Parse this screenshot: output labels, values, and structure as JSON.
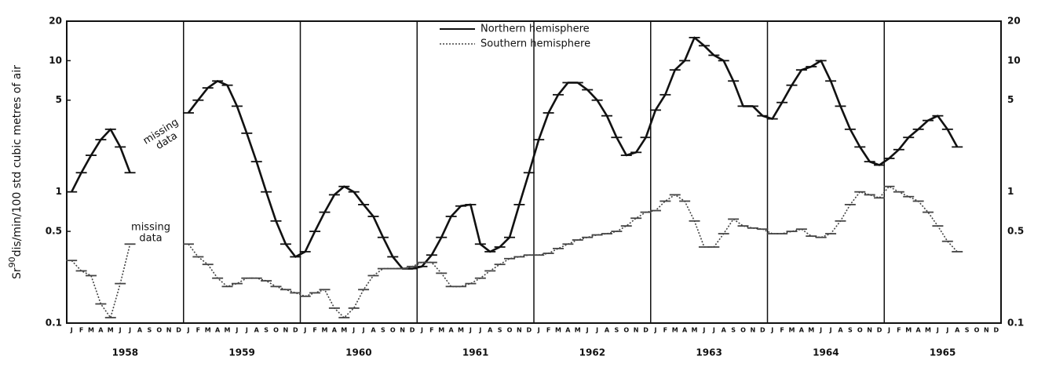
{
  "chart_data": {
    "type": "line",
    "ylabel": [
      "Sr",
      "90",
      "dis/min/100 std cubic metres of air"
    ],
    "log_scale": true,
    "ylim": [
      0.1,
      20
    ],
    "yticks": [
      0.1,
      0.5,
      1,
      5,
      10,
      20
    ],
    "years": [
      "1958",
      "1959",
      "1960",
      "1961",
      "1962",
      "1963",
      "1964",
      "1965"
    ],
    "categories": [
      "J",
      "F",
      "M",
      "A",
      "M",
      "J",
      "J",
      "A",
      "S",
      "O",
      "N",
      "D",
      "J",
      "F",
      "M",
      "A",
      "M",
      "J",
      "J",
      "A",
      "S",
      "O",
      "N",
      "D",
      "J",
      "F",
      "M",
      "A",
      "M",
      "J",
      "J",
      "A",
      "S",
      "O",
      "N",
      "D",
      "J",
      "F",
      "M",
      "A",
      "M",
      "J",
      "J",
      "A",
      "S",
      "O",
      "N",
      "D",
      "J",
      "F",
      "M",
      "A",
      "M",
      "J",
      "J",
      "A",
      "S",
      "O",
      "N",
      "D",
      "J",
      "F",
      "M",
      "A",
      "M",
      "J",
      "J",
      "A",
      "S",
      "O",
      "N",
      "D",
      "J",
      "F",
      "M",
      "A",
      "M",
      "J",
      "J",
      "A",
      "S",
      "O",
      "N",
      "D",
      "J",
      "F",
      "M",
      "A",
      "M",
      "J",
      "J",
      "A",
      "S",
      "O",
      "N",
      "D"
    ],
    "series": [
      {
        "name": "Northern hemisphere",
        "color": "#111111",
        "style": "solid",
        "values": [
          1.0,
          1.4,
          1.9,
          2.5,
          3.0,
          2.2,
          1.4,
          null,
          null,
          null,
          null,
          null,
          4.0,
          5.0,
          6.2,
          7.0,
          6.5,
          4.5,
          2.8,
          1.7,
          1.0,
          0.6,
          0.4,
          0.32,
          0.35,
          0.5,
          0.7,
          0.95,
          1.1,
          1.0,
          0.8,
          0.65,
          0.45,
          0.32,
          0.26,
          0.26,
          0.27,
          0.33,
          0.45,
          0.65,
          0.78,
          0.8,
          0.4,
          0.35,
          0.38,
          0.45,
          0.8,
          1.4,
          2.5,
          4.0,
          5.5,
          6.8,
          6.8,
          6.0,
          5.0,
          3.8,
          2.6,
          1.9,
          2.0,
          2.6,
          4.2,
          5.5,
          8.5,
          10,
          15,
          13,
          11,
          10,
          7,
          4.5,
          4.5,
          3.8,
          3.6,
          4.8,
          6.5,
          8.5,
          9,
          10,
          7,
          4.5,
          3.0,
          2.2,
          1.7,
          1.6,
          1.8,
          2.1,
          2.6,
          3.0,
          3.5,
          3.8,
          3.0,
          2.2,
          null,
          null,
          null,
          null
        ]
      },
      {
        "name": "Southern hemisphere",
        "color": "#444444",
        "style": "dotted",
        "values": [
          0.3,
          0.25,
          0.23,
          0.14,
          0.11,
          0.2,
          0.4,
          null,
          null,
          null,
          null,
          null,
          0.4,
          0.32,
          0.28,
          0.22,
          0.19,
          0.2,
          0.22,
          0.22,
          0.21,
          0.19,
          0.18,
          0.17,
          0.16,
          0.17,
          0.18,
          0.13,
          0.11,
          0.13,
          0.18,
          0.23,
          0.26,
          0.26,
          0.26,
          0.27,
          0.29,
          0.29,
          0.24,
          0.19,
          0.19,
          0.2,
          0.22,
          0.25,
          0.28,
          0.31,
          0.32,
          0.33,
          0.33,
          0.34,
          0.37,
          0.4,
          0.43,
          0.45,
          0.47,
          0.48,
          0.5,
          0.55,
          0.63,
          0.7,
          0.72,
          0.85,
          0.95,
          0.85,
          0.6,
          0.38,
          0.38,
          0.48,
          0.62,
          0.55,
          0.53,
          0.52,
          0.48,
          0.48,
          0.5,
          0.52,
          0.46,
          0.45,
          0.48,
          0.6,
          0.8,
          1.0,
          0.95,
          0.9,
          1.1,
          1.0,
          0.92,
          0.85,
          0.7,
          0.55,
          0.42,
          0.35,
          null,
          null,
          null,
          null
        ]
      }
    ],
    "annotations": [
      {
        "lines": [
          "missing",
          "data"
        ]
      },
      {
        "lines": [
          "missing",
          "data"
        ]
      }
    ]
  }
}
